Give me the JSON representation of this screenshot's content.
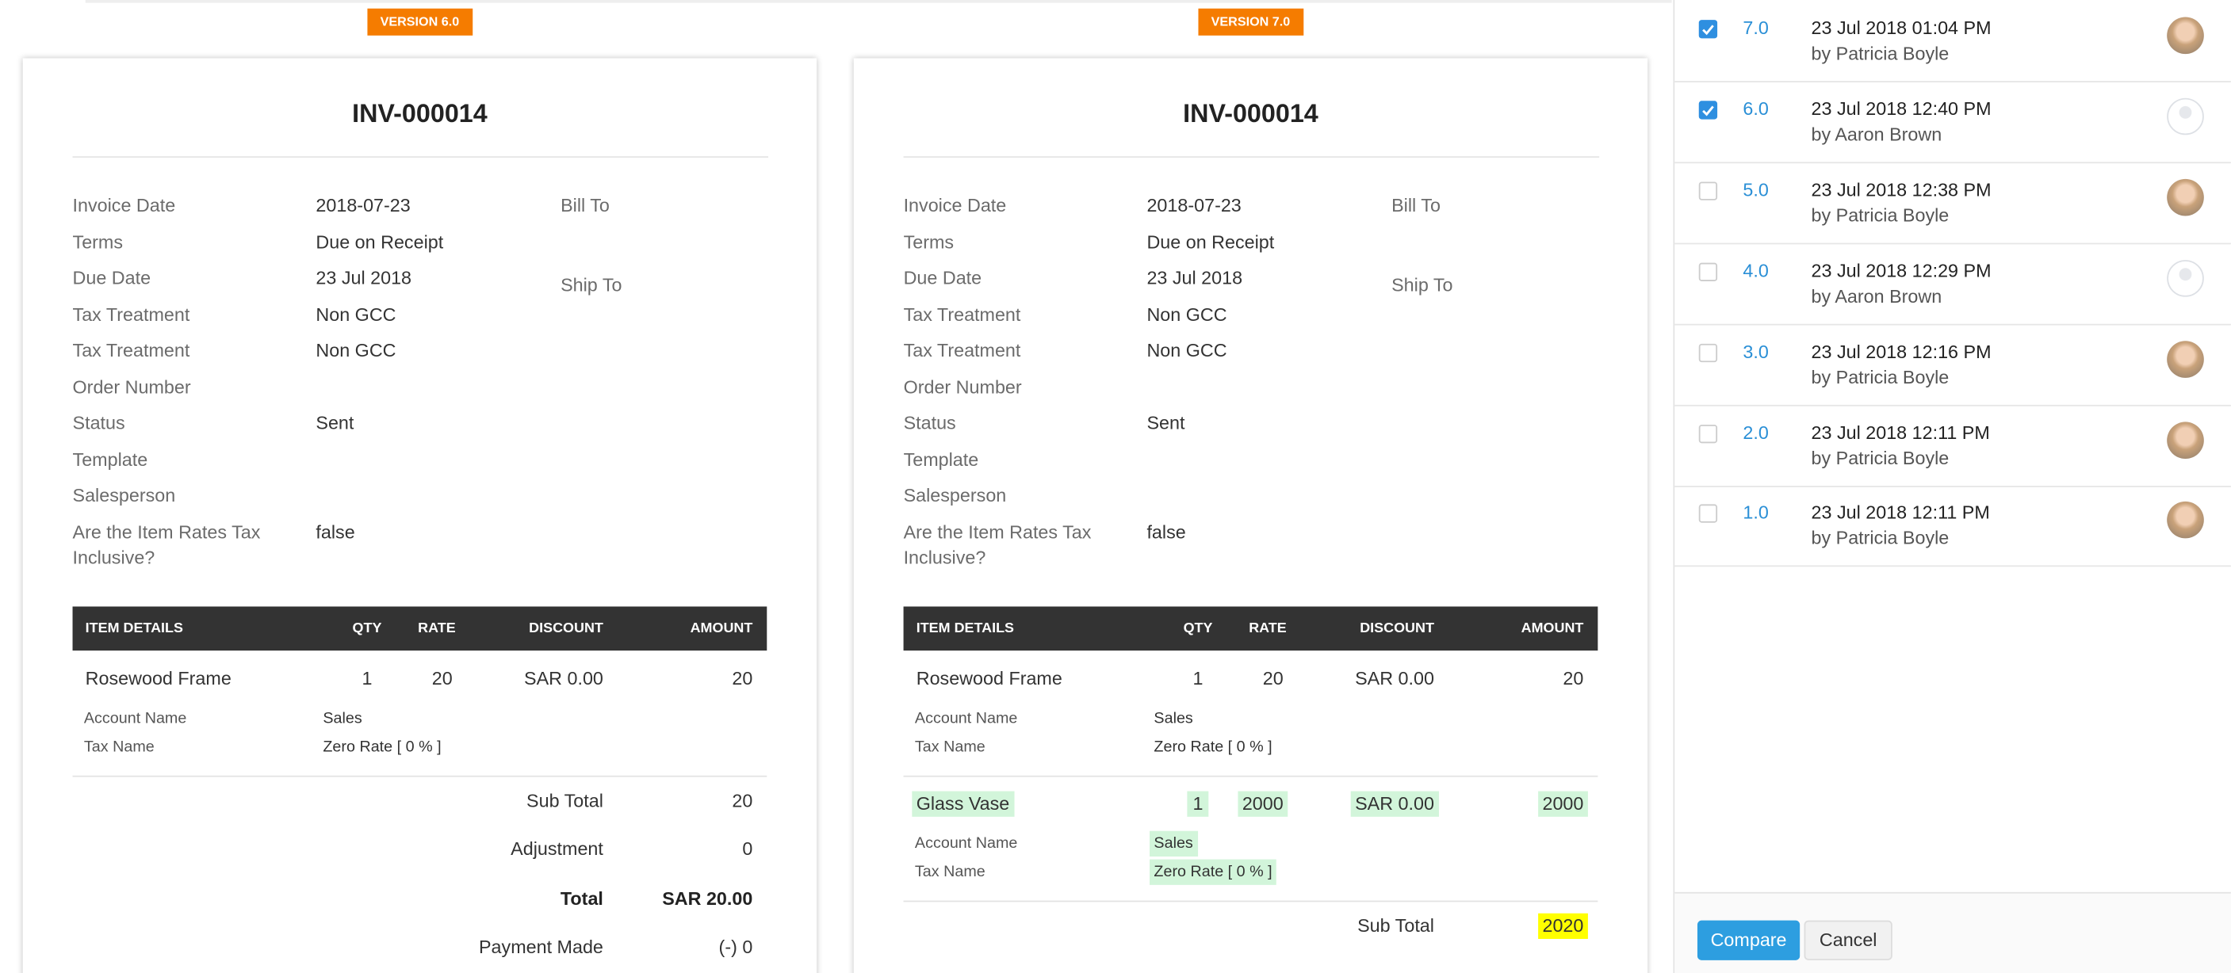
{
  "panels": [
    {
      "badge": "VERSION 6.0",
      "title": "INV-000014",
      "fields": [
        {
          "label": "Invoice Date",
          "value": "2018-07-23"
        },
        {
          "label": "Terms",
          "value": "Due on Receipt"
        },
        {
          "label": "Due Date",
          "value": "23 Jul 2018"
        },
        {
          "label": "Tax Treatment",
          "value": "Non GCC"
        },
        {
          "label": "Tax Treatment",
          "value": "Non GCC"
        },
        {
          "label": "Order Number"
        },
        {
          "label": "Status",
          "value": "Sent"
        },
        {
          "label": "Template"
        },
        {
          "label": "Salesperson"
        },
        {
          "label": "Are the Item Rates Tax Inclusive?",
          "value": "false"
        }
      ],
      "bill_to": "Bill To",
      "ship_to": "Ship To",
      "columns": [
        "ITEM DETAILS",
        "QTY",
        "RATE",
        "DISCOUNT",
        "AMOUNT"
      ],
      "items": [
        {
          "name": "Rosewood Frame",
          "qty": 1,
          "rate": 20,
          "discount": "SAR 0.00",
          "amount": 20,
          "account_label": "Account Name",
          "account": "Sales",
          "tax_label": "Tax Name",
          "tax": "Zero Rate [ 0 % ]",
          "added": false
        }
      ],
      "totals": [
        {
          "label": "Sub Total",
          "value": 20,
          "bold": false,
          "changed": false
        },
        {
          "label": "Adjustment",
          "value": 0,
          "bold": false,
          "changed": false
        },
        {
          "label": "Total",
          "value": "SAR 20.00",
          "bold": true,
          "changed": false
        },
        {
          "label": "Payment Made",
          "value": "(-) 0",
          "bold": false,
          "changed": false
        }
      ]
    },
    {
      "badge": "VERSION 7.0",
      "title": "INV-000014",
      "fields": [
        {
          "label": "Invoice Date",
          "value": "2018-07-23"
        },
        {
          "label": "Terms",
          "value": "Due on Receipt"
        },
        {
          "label": "Due Date",
          "value": "23 Jul 2018"
        },
        {
          "label": "Tax Treatment",
          "value": "Non GCC"
        },
        {
          "label": "Tax Treatment",
          "value": "Non GCC"
        },
        {
          "label": "Order Number"
        },
        {
          "label": "Status",
          "value": "Sent"
        },
        {
          "label": "Template"
        },
        {
          "label": "Salesperson"
        },
        {
          "label": "Are the Item Rates Tax Inclusive?",
          "value": "false"
        }
      ],
      "bill_to": "Bill To",
      "ship_to": "Ship To",
      "columns": [
        "ITEM DETAILS",
        "QTY",
        "RATE",
        "DISCOUNT",
        "AMOUNT"
      ],
      "items": [
        {
          "name": "Rosewood Frame",
          "qty": 1,
          "rate": 20,
          "discount": "SAR 0.00",
          "amount": 20,
          "account_label": "Account Name",
          "account": "Sales",
          "tax_label": "Tax Name",
          "tax": "Zero Rate [ 0 % ]",
          "added": false
        },
        {
          "name": "Glass Vase",
          "qty": 1,
          "rate": 2000,
          "discount": "SAR 0.00",
          "amount": 2000,
          "account_label": "Account Name",
          "account": "Sales",
          "tax_label": "Tax Name",
          "tax": "Zero Rate [ 0 % ]",
          "added": true
        }
      ],
      "totals": [
        {
          "label": "Sub Total",
          "value": 2020,
          "bold": false,
          "changed": true
        }
      ]
    }
  ],
  "history": [
    {
      "checked": true,
      "version": "7.0",
      "date": "23 Jul 2018 01:04 PM",
      "author": "by Patricia Boyle",
      "photo": true
    },
    {
      "checked": true,
      "version": "6.0",
      "date": "23 Jul 2018 12:40 PM",
      "author": "by Aaron Brown",
      "photo": false
    },
    {
      "checked": false,
      "version": "5.0",
      "date": "23 Jul 2018 12:38 PM",
      "author": "by Patricia Boyle",
      "photo": true
    },
    {
      "checked": false,
      "version": "4.0",
      "date": "23 Jul 2018 12:29 PM",
      "author": "by Aaron Brown",
      "photo": false
    },
    {
      "checked": false,
      "version": "3.0",
      "date": "23 Jul 2018 12:16 PM",
      "author": "by Patricia Boyle",
      "photo": true
    },
    {
      "checked": false,
      "version": "2.0",
      "date": "23 Jul 2018 12:11 PM",
      "author": "by Patricia Boyle",
      "photo": true
    },
    {
      "checked": false,
      "version": "1.0",
      "date": "23 Jul 2018 12:11 PM",
      "author": "by Patricia Boyle",
      "photo": true
    }
  ],
  "buttons": {
    "compare": "Compare",
    "cancel": "Cancel"
  }
}
